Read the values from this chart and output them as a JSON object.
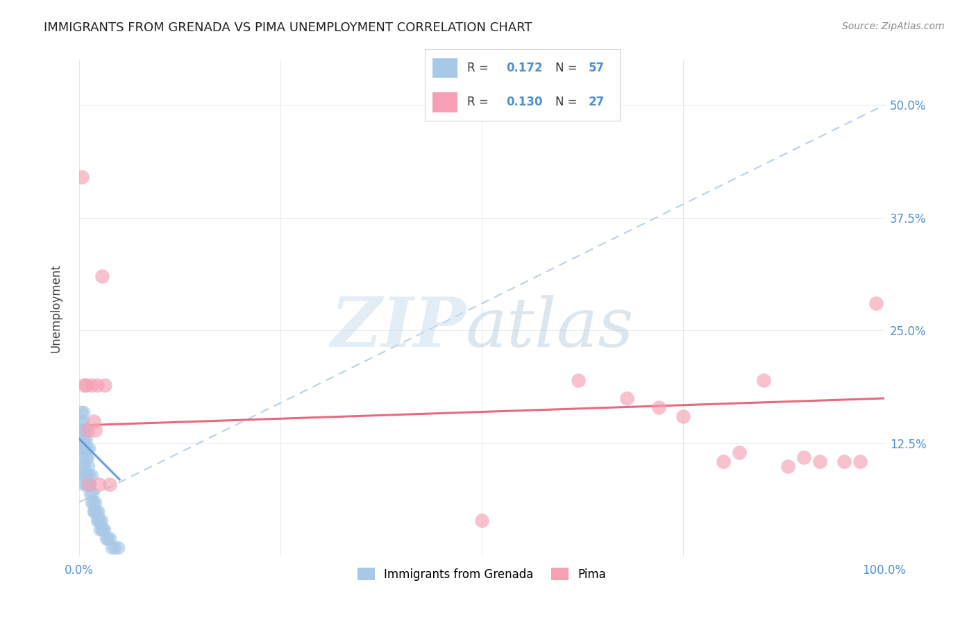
{
  "title": "IMMIGRANTS FROM GRENADA VS PIMA UNEMPLOYMENT CORRELATION CHART",
  "source": "Source: ZipAtlas.com",
  "ylabel": "Unemployment",
  "xlim": [
    0.0,
    1.0
  ],
  "ylim": [
    0.0,
    0.55
  ],
  "xticks": [
    0.0,
    0.25,
    0.5,
    0.75,
    1.0
  ],
  "yticks": [
    0.0,
    0.125,
    0.25,
    0.375,
    0.5
  ],
  "blue_color": "#a8c8e8",
  "pink_color": "#f5a0b5",
  "blue_line_color": "#5b9bd5",
  "pink_line_color": "#e8607a",
  "dashed_line_color": "#b0cce8",
  "blue_scatter_x": [
    0.001,
    0.001,
    0.002,
    0.002,
    0.002,
    0.003,
    0.003,
    0.003,
    0.003,
    0.004,
    0.004,
    0.004,
    0.004,
    0.005,
    0.005,
    0.005,
    0.006,
    0.006,
    0.006,
    0.007,
    0.007,
    0.007,
    0.008,
    0.008,
    0.008,
    0.009,
    0.009,
    0.01,
    0.01,
    0.011,
    0.012,
    0.012,
    0.013,
    0.014,
    0.015,
    0.015,
    0.016,
    0.017,
    0.018,
    0.019,
    0.02,
    0.021,
    0.022,
    0.023,
    0.024,
    0.025,
    0.026,
    0.027,
    0.028,
    0.029,
    0.031,
    0.033,
    0.035,
    0.038,
    0.04,
    0.044,
    0.048
  ],
  "blue_scatter_y": [
    0.14,
    0.13,
    0.15,
    0.12,
    0.16,
    0.14,
    0.13,
    0.11,
    0.1,
    0.15,
    0.13,
    0.12,
    0.09,
    0.16,
    0.14,
    0.12,
    0.13,
    0.1,
    0.08,
    0.14,
    0.12,
    0.09,
    0.13,
    0.11,
    0.08,
    0.12,
    0.09,
    0.11,
    0.08,
    0.1,
    0.12,
    0.09,
    0.08,
    0.07,
    0.09,
    0.06,
    0.07,
    0.06,
    0.05,
    0.05,
    0.06,
    0.05,
    0.04,
    0.05,
    0.04,
    0.04,
    0.03,
    0.04,
    0.03,
    0.03,
    0.03,
    0.02,
    0.02,
    0.02,
    0.01,
    0.01,
    0.01
  ],
  "pink_scatter_x": [
    0.003,
    0.006,
    0.008,
    0.01,
    0.012,
    0.015,
    0.018,
    0.02,
    0.022,
    0.025,
    0.028,
    0.032,
    0.038,
    0.5,
    0.62,
    0.68,
    0.72,
    0.75,
    0.8,
    0.82,
    0.85,
    0.88,
    0.9,
    0.92,
    0.95,
    0.97,
    0.99
  ],
  "pink_scatter_y": [
    0.42,
    0.19,
    0.19,
    0.14,
    0.08,
    0.19,
    0.15,
    0.14,
    0.19,
    0.08,
    0.31,
    0.19,
    0.08,
    0.04,
    0.195,
    0.175,
    0.165,
    0.155,
    0.105,
    0.115,
    0.195,
    0.1,
    0.11,
    0.105,
    0.105,
    0.105,
    0.28
  ],
  "blue_trendline": [
    [
      0.0,
      1.0
    ],
    [
      0.06,
      0.5
    ]
  ],
  "pink_trendline": [
    [
      0.0,
      1.0
    ],
    [
      0.145,
      0.175
    ]
  ],
  "blue_solid_trendline": [
    [
      0.0,
      0.05
    ],
    [
      0.13,
      0.085
    ]
  ]
}
